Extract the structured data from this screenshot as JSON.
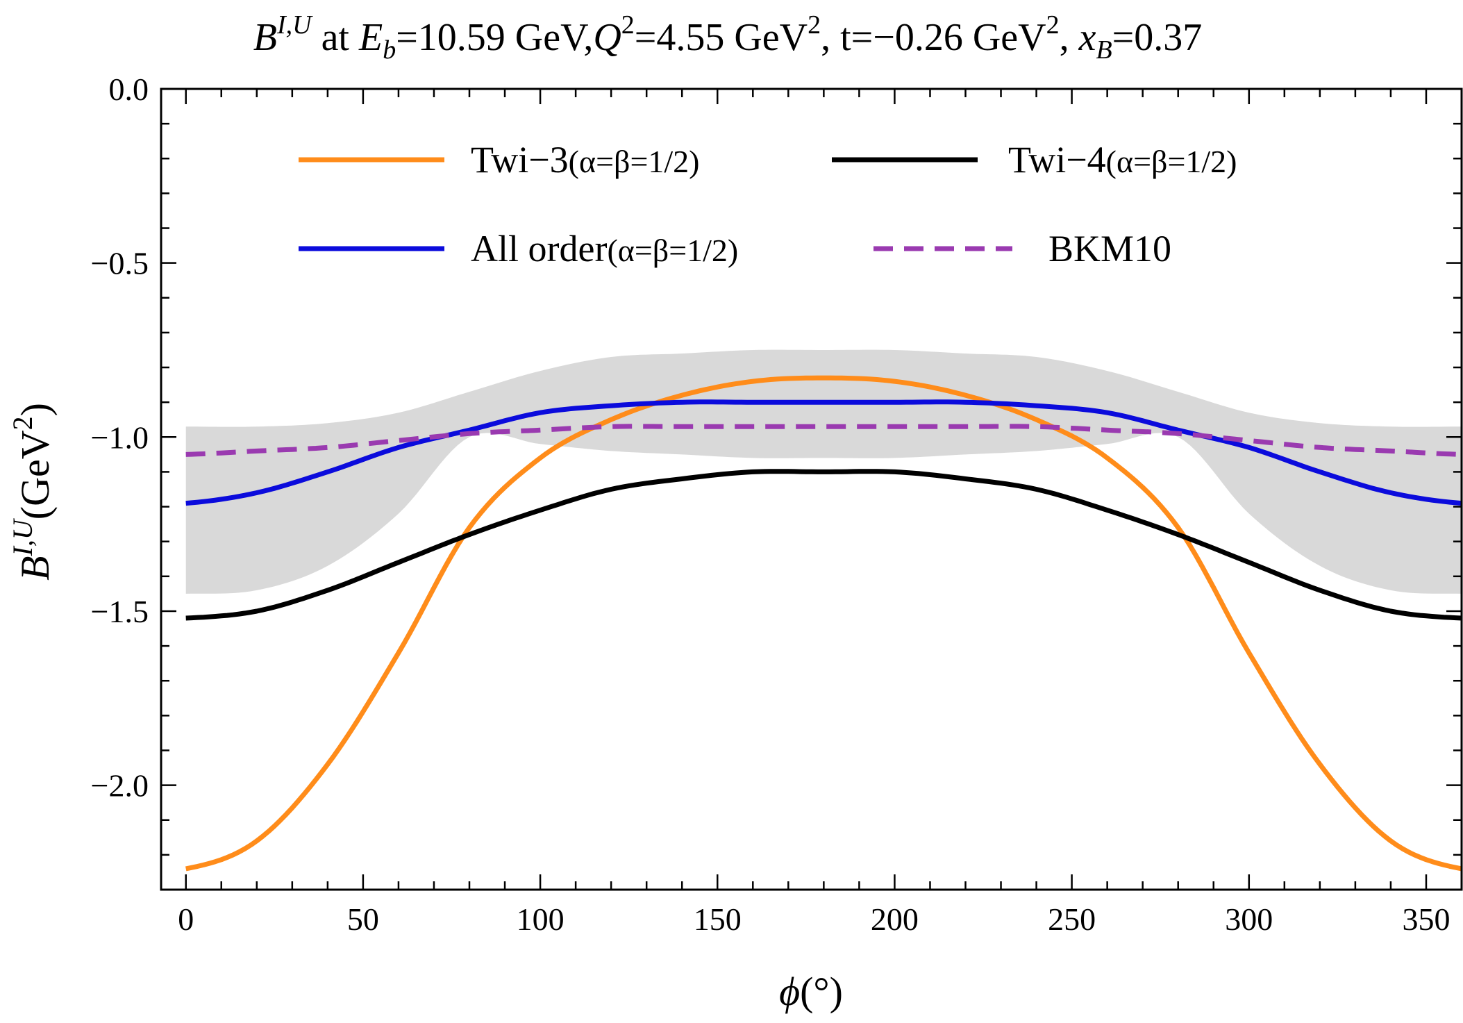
{
  "chart_data": {
    "type": "line",
    "title_parts": {
      "symbol": "B",
      "symbol_sup": "I,U",
      "at": " at ",
      "eb_symbol": "E",
      "eb_sub": "b",
      "eb_value": "=10.59 GeV,",
      "q_symbol": "Q",
      "q_sup": "2",
      "q_value": "=4.55 GeV",
      "q_unit_sup": "2",
      "t_value": ", t=−0.26 GeV",
      "t_unit_sup": "2",
      "sep": ", ",
      "x_symbol": "x",
      "x_sub": "B",
      "x_value": "=0.37"
    },
    "xlabel_parts": {
      "symbol": "ϕ",
      "unit": "(°)"
    },
    "ylabel_parts": {
      "symbol": "B",
      "sup": "I,U",
      "unit": "(GeV",
      "unit_sup": "2",
      "close": ")"
    },
    "xlim": [
      -7,
      360
    ],
    "ylim": [
      -2.3,
      0.0
    ],
    "xticks": [
      0,
      50,
      100,
      150,
      200,
      250,
      300,
      350
    ],
    "xtick_labels": [
      "0",
      "50",
      "100",
      "150",
      "200",
      "250",
      "300",
      "350"
    ],
    "yticks": [
      0.0,
      -0.5,
      -1.0,
      -1.5,
      -2.0
    ],
    "ytick_labels": [
      "0.0",
      "−0.5",
      "−1.0",
      "−1.5",
      "−2.0"
    ],
    "grid": false,
    "legend_position": "top",
    "x": [
      0,
      20,
      40,
      60,
      80,
      100,
      120,
      140,
      160,
      180,
      200,
      220,
      240,
      260,
      280,
      300,
      320,
      340,
      360
    ],
    "band": {
      "color": "#d9d9d9",
      "upper": [
        -0.97,
        -0.97,
        -0.96,
        -0.93,
        -0.87,
        -0.81,
        -0.77,
        -0.76,
        -0.75,
        -0.75,
        -0.75,
        -0.76,
        -0.77,
        -0.81,
        -0.87,
        -0.93,
        -0.96,
        -0.97,
        -0.97
      ],
      "lower": [
        -1.45,
        -1.44,
        -1.37,
        -1.22,
        -1.0,
        -1.02,
        -1.04,
        -1.05,
        -1.06,
        -1.06,
        -1.06,
        -1.05,
        -1.04,
        -1.02,
        -1.0,
        -1.22,
        -1.37,
        -1.44,
        -1.45
      ]
    },
    "series": [
      {
        "name": "Twi−3",
        "name_suffix": "(α=β=1/2)",
        "color": "#ff8c1a",
        "dash": "solid",
        "values": [
          -2.24,
          -2.16,
          -1.94,
          -1.62,
          -1.26,
          -1.06,
          -0.95,
          -0.88,
          -0.84,
          -0.83,
          -0.84,
          -0.88,
          -0.95,
          -1.06,
          -1.26,
          -1.62,
          -1.94,
          -2.16,
          -2.24
        ]
      },
      {
        "name": "Twi−4",
        "name_suffix": "(α=β=1/2)",
        "color": "#000000",
        "dash": "solid",
        "values": [
          -1.52,
          -1.5,
          -1.44,
          -1.36,
          -1.28,
          -1.21,
          -1.15,
          -1.12,
          -1.1,
          -1.1,
          -1.1,
          -1.12,
          -1.15,
          -1.21,
          -1.28,
          -1.36,
          -1.44,
          -1.5,
          -1.52
        ]
      },
      {
        "name": "All order",
        "name_suffix": "(α=β=1/2)",
        "color": "#0b0bdc",
        "dash": "solid",
        "values": [
          -1.19,
          -1.16,
          -1.1,
          -1.03,
          -0.98,
          -0.93,
          -0.91,
          -0.9,
          -0.9,
          -0.9,
          -0.9,
          -0.9,
          -0.91,
          -0.93,
          -0.98,
          -1.03,
          -1.1,
          -1.16,
          -1.19
        ]
      },
      {
        "name": "BKM10",
        "name_suffix": "",
        "color": "#9a3ab0",
        "dash": "dashed",
        "values": [
          -1.05,
          -1.04,
          -1.03,
          -1.01,
          -0.99,
          -0.98,
          -0.97,
          -0.97,
          -0.97,
          -0.97,
          -0.97,
          -0.97,
          -0.97,
          -0.98,
          -0.99,
          -1.01,
          -1.03,
          -1.04,
          -1.05
        ]
      }
    ]
  }
}
